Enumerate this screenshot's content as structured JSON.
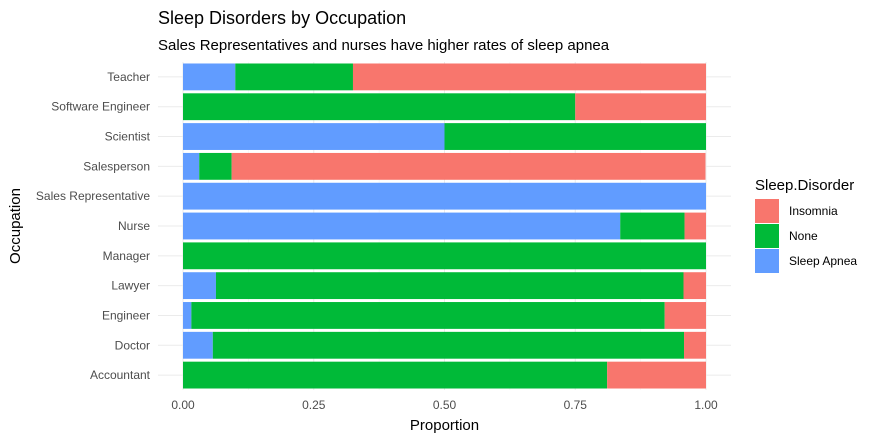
{
  "chart_data": {
    "type": "bar",
    "orientation": "horizontal",
    "stacked": "proportion",
    "title": "Sleep Disorders by Occupation",
    "subtitle": "Sales Representatives and nurses have higher rates of sleep apnea",
    "xlabel": "Proportion",
    "ylabel": "Occupation",
    "xlim": [
      0,
      1
    ],
    "x_ticks": [
      "0.00",
      "0.25",
      "0.50",
      "0.75",
      "1.00"
    ],
    "grid": true,
    "legend": {
      "title": "Sleep.Disorder",
      "position": "right"
    },
    "categories": [
      "Accountant",
      "Doctor",
      "Engineer",
      "Lawyer",
      "Manager",
      "Nurse",
      "Sales Representative",
      "Salesperson",
      "Scientist",
      "Software Engineer",
      "Teacher"
    ],
    "series": [
      {
        "name": "Insomnia",
        "color": "#F8766D",
        "values": [
          0.189,
          0.042,
          0.079,
          0.043,
          0.0,
          0.041,
          0.0,
          0.906,
          0.0,
          0.25,
          0.675
        ]
      },
      {
        "name": "None",
        "color": "#00BA38",
        "values": [
          0.811,
          0.901,
          0.905,
          0.894,
          1.0,
          0.123,
          0.0,
          0.062,
          0.5,
          0.75,
          0.225
        ]
      },
      {
        "name": "Sleep Apnea",
        "color": "#619CFF",
        "values": [
          0.0,
          0.057,
          0.016,
          0.063,
          0.0,
          0.836,
          1.0,
          0.031,
          0.5,
          0.0,
          0.1
        ]
      }
    ]
  }
}
